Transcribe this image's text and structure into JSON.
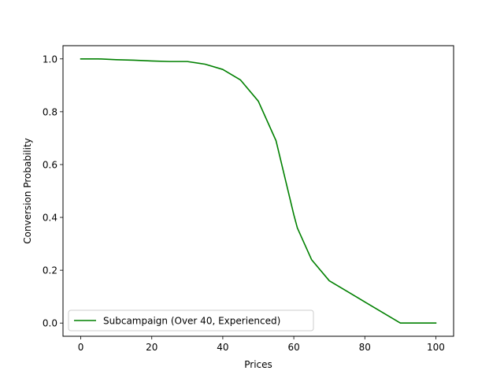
{
  "chart_data": {
    "type": "line",
    "xlabel": "Prices",
    "ylabel": "Conversion Probability",
    "xlim": [
      -5,
      105
    ],
    "ylim": [
      -0.05,
      1.05
    ],
    "x_ticks": [
      0,
      20,
      40,
      60,
      80,
      100
    ],
    "x_tick_labels": [
      "0",
      "20",
      "40",
      "60",
      "80",
      "100"
    ],
    "y_ticks": [
      0.0,
      0.2,
      0.4,
      0.6,
      0.8,
      1.0
    ],
    "y_tick_labels": [
      "0.0",
      "0.2",
      "0.4",
      "0.6",
      "0.8",
      "1.0"
    ],
    "grid": false,
    "legend_position": "lower-left",
    "series": [
      {
        "name": "Subcampaign (Over 40, Experienced)",
        "color": "#008000",
        "x": [
          0,
          5,
          10,
          15,
          20,
          25,
          30,
          35,
          40,
          45,
          50,
          55,
          60,
          61,
          65,
          70,
          75,
          80,
          85,
          90,
          95,
          100
        ],
        "y": [
          1.0,
          1.0,
          0.997,
          0.995,
          0.992,
          0.99,
          0.99,
          0.98,
          0.96,
          0.92,
          0.84,
          0.69,
          0.41,
          0.36,
          0.24,
          0.16,
          0.12,
          0.08,
          0.04,
          0.0,
          0.0,
          0.0
        ]
      }
    ]
  }
}
